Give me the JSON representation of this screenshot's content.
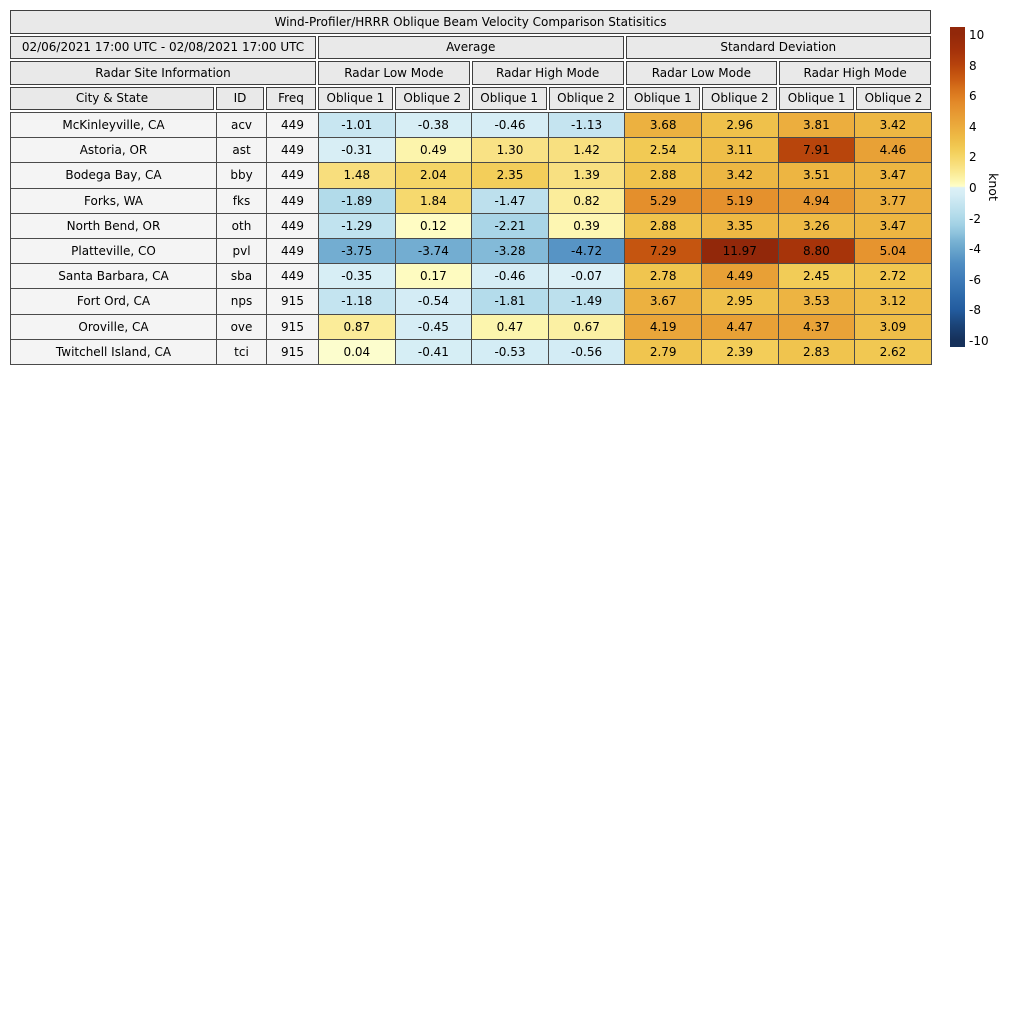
{
  "chart_data": {
    "type": "heatmap-table",
    "title": "Wind-Profiler/HRRR Oblique Beam Velocity Comparison Statisitics",
    "date_range": "02/06/2021 17:00 UTC - 02/08/2021 17:00 UTC",
    "site_info_header": "Radar Site Information",
    "group_headers": [
      "Average",
      "Standard Deviation"
    ],
    "mode_headers": [
      "Radar Low Mode",
      "Radar High Mode",
      "Radar Low Mode",
      "Radar High Mode"
    ],
    "column_headers": [
      "City & State",
      "ID",
      "Freq",
      "Oblique 1",
      "Oblique 2",
      "Oblique 1",
      "Oblique 2",
      "Oblique 1",
      "Oblique 2",
      "Oblique 1",
      "Oblique 2"
    ],
    "rows": [
      {
        "city": "McKinleyville, CA",
        "id": "acv",
        "freq": "449",
        "values": [
          -1.01,
          -0.38,
          -0.46,
          -1.13,
          3.68,
          2.96,
          3.81,
          3.42
        ]
      },
      {
        "city": "Astoria, OR",
        "id": "ast",
        "freq": "449",
        "values": [
          -0.31,
          0.49,
          1.3,
          1.42,
          2.54,
          3.11,
          7.91,
          4.46
        ]
      },
      {
        "city": "Bodega Bay, CA",
        "id": "bby",
        "freq": "449",
        "values": [
          1.48,
          2.04,
          2.35,
          1.39,
          2.88,
          3.42,
          3.51,
          3.47
        ]
      },
      {
        "city": "Forks, WA",
        "id": "fks",
        "freq": "449",
        "values": [
          -1.89,
          1.84,
          -1.47,
          0.82,
          5.29,
          5.19,
          4.94,
          3.77
        ]
      },
      {
        "city": "North Bend, OR",
        "id": "oth",
        "freq": "449",
        "values": [
          -1.29,
          0.12,
          -2.21,
          0.39,
          2.88,
          3.35,
          3.26,
          3.47
        ]
      },
      {
        "city": "Platteville, CO",
        "id": "pvl",
        "freq": "449",
        "values": [
          -3.75,
          -3.74,
          -3.28,
          -4.72,
          7.29,
          11.97,
          8.8,
          5.04
        ]
      },
      {
        "city": "Santa Barbara, CA",
        "id": "sba",
        "freq": "449",
        "values": [
          -0.35,
          0.17,
          -0.46,
          -0.07,
          2.78,
          4.49,
          2.45,
          2.72
        ]
      },
      {
        "city": "Fort Ord, CA",
        "id": "nps",
        "freq": "915",
        "values": [
          -1.18,
          -0.54,
          -1.81,
          -1.49,
          3.67,
          2.95,
          3.53,
          3.12
        ]
      },
      {
        "city": "Oroville, CA",
        "id": "ove",
        "freq": "915",
        "values": [
          0.87,
          -0.45,
          0.47,
          0.67,
          4.19,
          4.47,
          4.37,
          3.09
        ]
      },
      {
        "city": "Twitchell Island, CA",
        "id": "tci",
        "freq": "915",
        "values": [
          0.04,
          -0.41,
          -0.53,
          -0.56,
          2.79,
          2.39,
          2.83,
          2.62
        ]
      }
    ],
    "colorbar": {
      "label": "knot",
      "min": -10,
      "max": 10,
      "ticks": [
        10,
        8,
        6,
        4,
        2,
        0,
        -2,
        -4,
        -6,
        -8,
        -10
      ]
    },
    "colormap_anchors": [
      [
        -10,
        "#15305A"
      ],
      [
        -9,
        "#1B4478"
      ],
      [
        -8,
        "#235C9F"
      ],
      [
        -7,
        "#2F6CAC"
      ],
      [
        -6,
        "#3F7CB9"
      ],
      [
        -5,
        "#4F8DC2"
      ],
      [
        -4,
        "#6BA7CD"
      ],
      [
        -3.5,
        "#7AB3D4"
      ],
      [
        -3,
        "#8FC3DD"
      ],
      [
        -2.5,
        "#A0D0E4"
      ],
      [
        -2,
        "#AFD9E9"
      ],
      [
        -1.5,
        "#BCE0ED"
      ],
      [
        -1,
        "#C8E6F1"
      ],
      [
        -0.5,
        "#D5EDF5"
      ],
      [
        -0.05,
        "#DCF0F6"
      ],
      [
        0.05,
        "#FFFEC8"
      ],
      [
        0.5,
        "#FCF4AB"
      ],
      [
        1,
        "#FAE992"
      ],
      [
        1.5,
        "#F8DE7C"
      ],
      [
        2,
        "#F5D667"
      ],
      [
        2.5,
        "#F2CB55"
      ],
      [
        3,
        "#EFC04A"
      ],
      [
        3.5,
        "#EDB542"
      ],
      [
        4,
        "#EBAA3C"
      ],
      [
        4.5,
        "#E8A036"
      ],
      [
        5,
        "#E69530"
      ],
      [
        5.5,
        "#E38A29"
      ],
      [
        6,
        "#DD7C20"
      ],
      [
        6.5,
        "#D56E1A"
      ],
      [
        7,
        "#CB5D13"
      ],
      [
        7.5,
        "#C1500E"
      ],
      [
        8,
        "#B6420C"
      ],
      [
        9,
        "#A3300A"
      ],
      [
        10,
        "#92280A"
      ]
    ],
    "colors": {
      "header_bg": "#E9E9E9",
      "row_label_bg": "#F4F4F4",
      "border": "#4A4A4A"
    }
  }
}
